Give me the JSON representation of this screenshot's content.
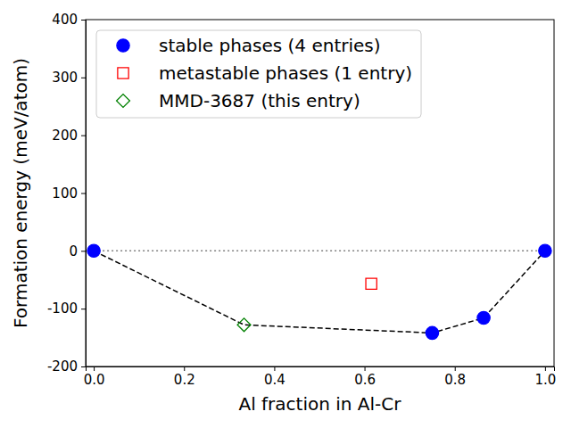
{
  "chart_data": {
    "type": "scatter",
    "x_label": "Al fraction in Al-Cr",
    "y_label": "Formation energy (meV/atom)",
    "xlim": [
      -0.018,
      1.02
    ],
    "ylim": [
      -200,
      400
    ],
    "xticks": [
      {
        "value": 0,
        "label": "0.0"
      },
      {
        "value": 0.2,
        "label": "0.2"
      },
      {
        "value": 0.4,
        "label": "0.4"
      },
      {
        "value": 0.6,
        "label": "0.6"
      },
      {
        "value": 0.8,
        "label": "0.8"
      },
      {
        "value": 1,
        "label": "1.0"
      }
    ],
    "yticks": [
      -200,
      -100,
      0,
      100,
      200,
      300,
      400
    ],
    "legend": "upper left",
    "series": [
      {
        "type": "line",
        "line_style": "dotted",
        "color": "#808080",
        "x": [
          0,
          1
        ],
        "values": [
          0,
          0
        ]
      },
      {
        "type": "line",
        "line_style": "dashed",
        "color": "#000000",
        "x": [
          0,
          0.333,
          0.75,
          0.864,
          1
        ],
        "values": [
          0,
          -128,
          -142,
          -116,
          0
        ]
      },
      {
        "type": "scatter",
        "name": "stable phases (4 entries)",
        "marker": "circle",
        "color": "#0000ff",
        "x": [
          0,
          0.75,
          0.864,
          1
        ],
        "values": [
          0,
          -142,
          -116,
          0
        ]
      },
      {
        "type": "scatter",
        "name": "metastable phases (1 entry)",
        "marker": "square",
        "color": "#ff0000",
        "x": [
          0.615
        ],
        "values": [
          -57
        ]
      },
      {
        "type": "scatter",
        "name": "MMD-3687 (this entry)",
        "marker": "diamond",
        "color": "#008000",
        "x": [
          0.333
        ],
        "values": [
          -128
        ]
      }
    ]
  }
}
